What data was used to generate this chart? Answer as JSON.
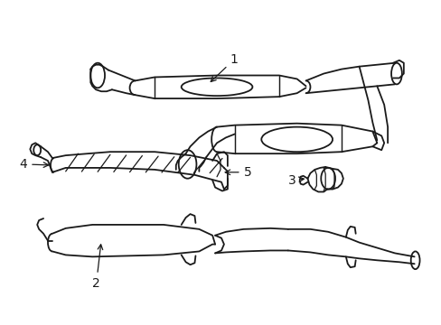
{
  "background_color": "#ffffff",
  "line_color": "#1a1a1a",
  "line_width": 1.3,
  "fontsize_label": 10
}
